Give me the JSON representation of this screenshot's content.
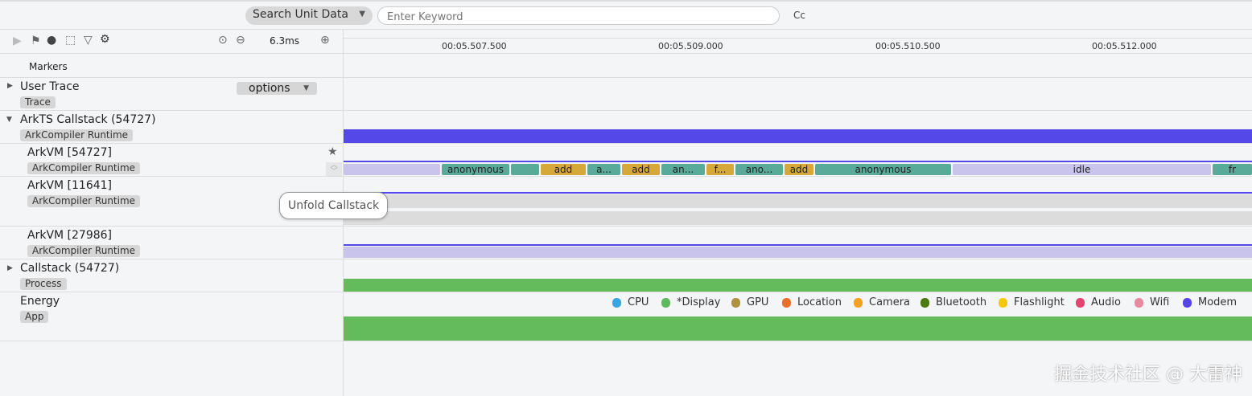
{
  "search": {
    "type_label": "Search Unit Data",
    "placeholder": "Enter Keyword",
    "case_label": "Cc"
  },
  "toolbar": {
    "zoom_value": "6.3ms"
  },
  "timeline": {
    "ticks": [
      "00:05.507.500",
      "00:05.509.000",
      "00:05.510.500",
      "00:05.512.000"
    ]
  },
  "rows": {
    "markers": "Markers",
    "user_trace": {
      "title": "User Trace",
      "tag": "Trace",
      "options": "options"
    },
    "arkts": {
      "title": "ArkTS Callstack (54727)",
      "tag": "ArkCompiler Runtime"
    },
    "arkvm1": {
      "title": "ArkVM [54727]",
      "tag": "ArkCompiler Runtime"
    },
    "arkvm2": {
      "title": "ArkVM [11641]",
      "tag": "ArkCompiler Runtime"
    },
    "arkvm3": {
      "title": "ArkVM [27986]",
      "tag": "ArkCompiler Runtime"
    },
    "callstack": {
      "title": "Callstack (54727)",
      "tag": "Process"
    },
    "energy": {
      "title": "Energy",
      "tag": "App"
    }
  },
  "tooltip": "Unfold Callstack",
  "slices": [
    {
      "label": "",
      "color": "#c8c4ec"
    },
    {
      "label": "anonymous",
      "color": "#5aaa9a"
    },
    {
      "label": "",
      "color": "#5aaa9a"
    },
    {
      "label": "add",
      "color": "#d6a83a"
    },
    {
      "label": "a...",
      "color": "#5aaa9a"
    },
    {
      "label": "add",
      "color": "#d6a83a"
    },
    {
      "label": "an...",
      "color": "#5aaa9a"
    },
    {
      "label": "f...",
      "color": "#d6a83a"
    },
    {
      "label": "ano...",
      "color": "#5aaa9a"
    },
    {
      "label": "add",
      "color": "#d6a83a"
    },
    {
      "label": "anonymous",
      "color": "#5aaa9a"
    },
    {
      "label": "idle",
      "color": "#c8c4ec"
    },
    {
      "label": "fr",
      "color": "#5aaa9a"
    }
  ],
  "legend": [
    {
      "label": "CPU",
      "color": "#3aa6e0"
    },
    {
      "label": "*Display",
      "color": "#5dbb5d"
    },
    {
      "label": "GPU",
      "color": "#b0923c"
    },
    {
      "label": "Location",
      "color": "#e8702a"
    },
    {
      "label": "Camera",
      "color": "#f5a020"
    },
    {
      "label": "Bluetooth",
      "color": "#4d7a12"
    },
    {
      "label": "Flashlight",
      "color": "#f5c800"
    },
    {
      "label": "Audio",
      "color": "#e04670"
    },
    {
      "label": "Wifi",
      "color": "#e88aa0"
    },
    {
      "label": "Modem",
      "color": "#5545e8"
    }
  ],
  "watermark": "掘金技术社区 @ 大雷神"
}
